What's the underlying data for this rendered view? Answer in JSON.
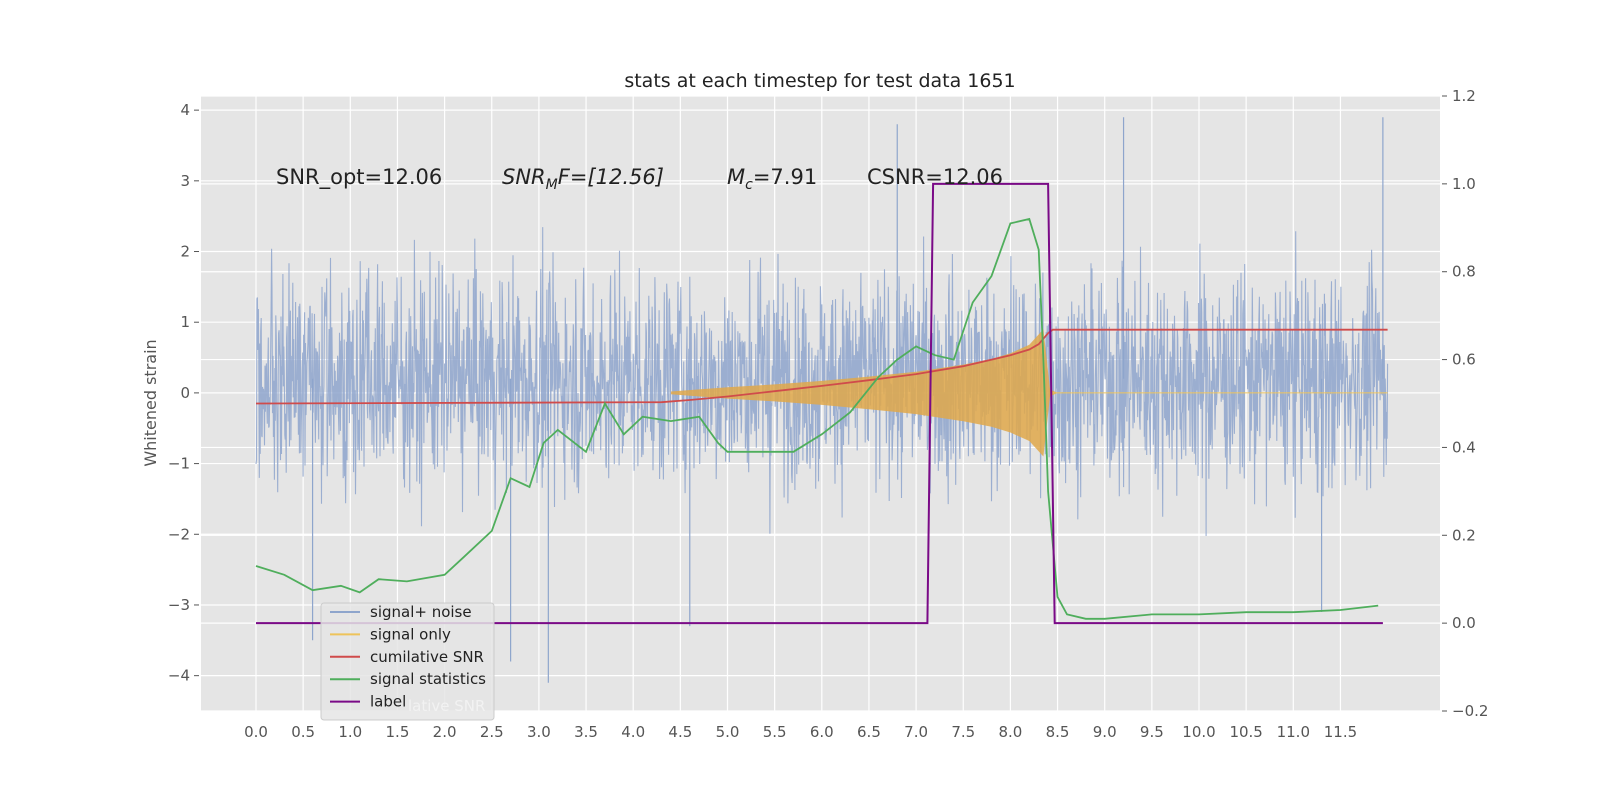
{
  "chart_data": {
    "type": "line",
    "title": "stats at each timestep for test data 1651",
    "ylabel": "Whitened strain",
    "xlabel": "",
    "xlim": [
      -0.6,
      12.55
    ],
    "ylim": [
      -4.5,
      4.2
    ],
    "y2lim": [
      -0.2,
      1.2
    ],
    "grid": true,
    "legend_position": "lower-left",
    "x_ticks": [
      "0.0",
      "0.5",
      "1.0",
      "1.5",
      "2.0",
      "2.5",
      "3.0",
      "3.5",
      "4.0",
      "4.5",
      "5.0",
      "5.5",
      "6.0",
      "6.5",
      "7.0",
      "7.5",
      "8.0",
      "8.5",
      "9.0",
      "9.5",
      "10.0",
      "10.5",
      "11.0",
      "11.5"
    ],
    "y_ticks": [
      "4",
      "3",
      "2",
      "1",
      "0",
      "−1",
      "−2",
      "−3",
      "−4"
    ],
    "y2_ticks": [
      "1.2",
      "1.0",
      "0.8",
      "0.6",
      "0.4",
      "0.2",
      "0.0",
      "−0.2"
    ],
    "annotations": {
      "snr_opt": "SNR_opt=12.06",
      "snr_mf_main": "SNR",
      "snr_mf_sub": "M",
      "snr_mf_rest": "F=[12.56]",
      "mc_main": "M",
      "mc_sub": "c",
      "mc_rest": "=7.91",
      "csnr": "CSNR=12.06"
    },
    "legend": [
      {
        "label": "signal+ noise",
        "color": "#8ea5cc"
      },
      {
        "label": "signal only",
        "color": "#eec35a"
      },
      {
        "label": "cumilative SNR",
        "color": "#d04b4b"
      },
      {
        "label": "signal statistics",
        "color": "#4fae5c"
      },
      {
        "label": "label",
        "color": "#7a0a87"
      }
    ],
    "legend_ghost_text": "lative SNR",
    "series": [
      {
        "name": "signal+ noise",
        "axis": "left",
        "color": "#8ea5cc",
        "x_range": [
          0.0,
          12.0
        ],
        "typical_envelope": [
          -2.0,
          2.6
        ],
        "extremes": {
          "max": 3.9,
          "min": -4.1
        }
      },
      {
        "name": "signal only",
        "axis": "left",
        "color": "#e0a84a",
        "x": [
          4.4,
          5.0,
          5.5,
          6.0,
          6.5,
          7.0,
          7.5,
          7.8,
          8.0,
          8.2,
          8.35,
          8.42,
          8.5,
          12.0
        ],
        "envelope": [
          0.02,
          0.08,
          0.12,
          0.17,
          0.23,
          0.3,
          0.4,
          0.48,
          0.56,
          0.68,
          0.9,
          0.05,
          0.0,
          0.0
        ]
      },
      {
        "name": "cumilative SNR",
        "axis": "right",
        "color": "#d04b4b",
        "x": [
          0.0,
          4.3,
          4.6,
          5.0,
          5.5,
          6.0,
          6.5,
          7.0,
          7.5,
          8.0,
          8.2,
          8.3,
          8.4,
          8.45,
          12.0
        ],
        "values": [
          0.5,
          0.503,
          0.508,
          0.516,
          0.528,
          0.54,
          0.553,
          0.567,
          0.585,
          0.61,
          0.623,
          0.635,
          0.66,
          0.668,
          0.668
        ]
      },
      {
        "name": "signal statistics",
        "axis": "right",
        "color": "#4fae5c",
        "x": [
          0.0,
          0.3,
          0.6,
          0.9,
          1.1,
          1.3,
          1.6,
          2.0,
          2.2,
          2.5,
          2.7,
          2.9,
          3.05,
          3.2,
          3.5,
          3.7,
          3.9,
          4.1,
          4.4,
          4.7,
          4.9,
          5.0,
          5.3,
          5.7,
          6.0,
          6.3,
          6.6,
          6.8,
          7.0,
          7.2,
          7.4,
          7.6,
          7.8,
          8.0,
          8.2,
          8.3,
          8.35,
          8.4,
          8.5,
          8.6,
          8.8,
          9.0,
          9.5,
          10.0,
          10.5,
          11.0,
          11.5,
          11.9
        ],
        "values": [
          0.13,
          0.11,
          0.075,
          0.085,
          0.07,
          0.1,
          0.095,
          0.11,
          0.15,
          0.21,
          0.33,
          0.31,
          0.41,
          0.44,
          0.39,
          0.5,
          0.43,
          0.47,
          0.46,
          0.47,
          0.41,
          0.39,
          0.39,
          0.39,
          0.43,
          0.48,
          0.56,
          0.6,
          0.63,
          0.61,
          0.6,
          0.73,
          0.79,
          0.91,
          0.92,
          0.85,
          0.6,
          0.3,
          0.06,
          0.02,
          0.01,
          0.01,
          0.02,
          0.02,
          0.025,
          0.025,
          0.03,
          0.04
        ]
      },
      {
        "name": "label",
        "axis": "right",
        "color": "#7a0a87",
        "x": [
          0.0,
          7.12,
          7.18,
          8.4,
          8.47,
          11.95
        ],
        "values": [
          0.0,
          0.0,
          1.0,
          1.0,
          0.0,
          0.0
        ]
      }
    ]
  }
}
